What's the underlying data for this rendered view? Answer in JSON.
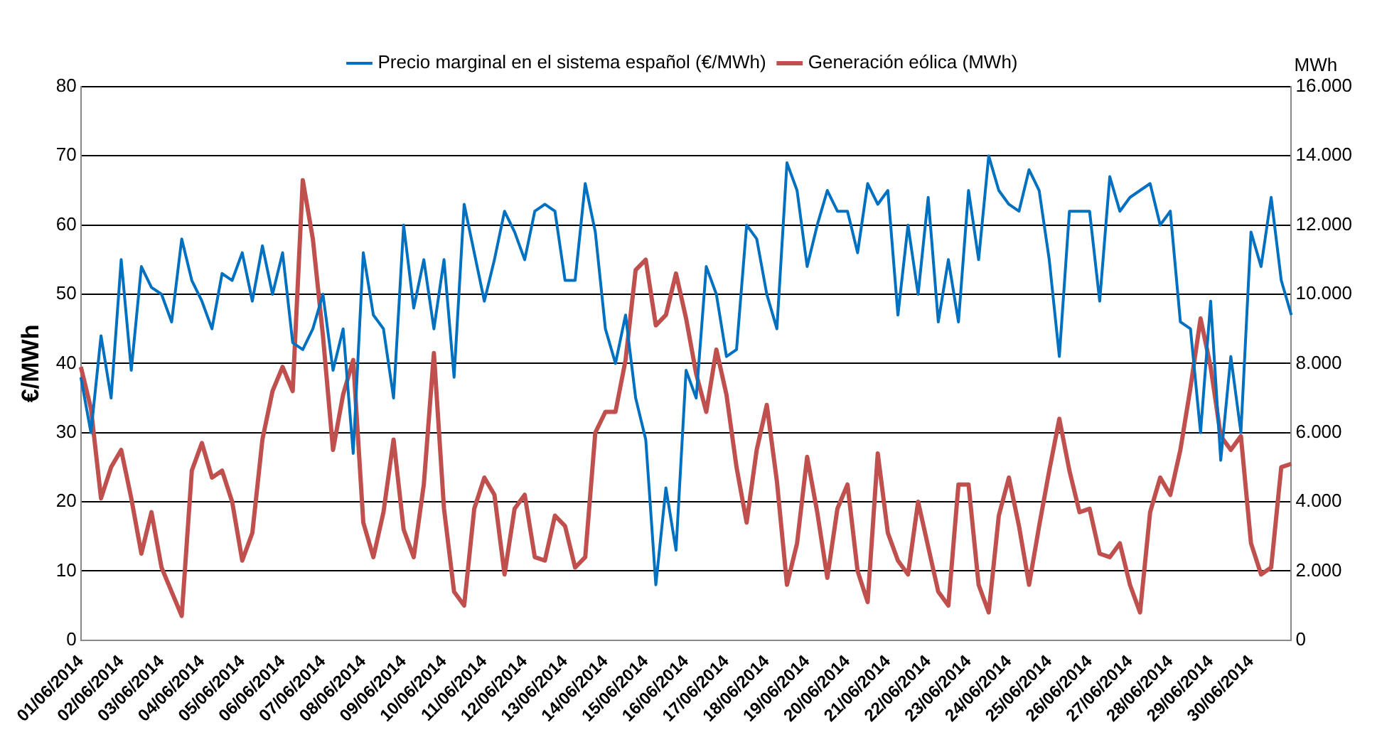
{
  "chart_data": {
    "type": "line",
    "ylabel": "€/MWh",
    "y2label": "MWh",
    "categories": [
      "01/06/2014",
      null,
      null,
      null,
      "02/06/2014",
      null,
      null,
      null,
      "03/06/2014",
      null,
      null,
      null,
      "04/06/2014",
      null,
      null,
      null,
      "05/06/2014",
      null,
      null,
      null,
      "06/06/2014",
      null,
      null,
      null,
      "07/06/2014",
      null,
      null,
      null,
      "08/06/2014",
      null,
      null,
      null,
      "09/06/2014",
      null,
      null,
      null,
      "10/06/2014",
      null,
      null,
      null,
      "11/06/2014",
      null,
      null,
      null,
      "12/06/2014",
      null,
      null,
      null,
      "13/06/2014",
      null,
      null,
      null,
      "14/06/2014",
      null,
      null,
      null,
      "15/06/2014",
      null,
      null,
      null,
      "16/06/2014",
      null,
      null,
      null,
      "17/06/2014",
      null,
      null,
      null,
      "18/06/2014",
      null,
      null,
      null,
      "19/06/2014",
      null,
      null,
      null,
      "20/06/2014",
      null,
      null,
      null,
      "21/06/2014",
      null,
      null,
      null,
      "22/06/2014",
      null,
      null,
      null,
      "23/06/2014",
      null,
      null,
      null,
      "24/06/2014",
      null,
      null,
      null,
      "25/06/2014",
      null,
      null,
      null,
      "26/06/2014",
      null,
      null,
      null,
      "27/06/2014",
      null,
      null,
      null,
      "28/06/2014",
      null,
      null,
      null,
      "29/06/2014",
      null,
      null,
      null,
      "30/06/2014",
      null,
      null,
      null,
      null
    ],
    "series": [
      {
        "name": "Precio marginal en el sistema español (€/MWh)",
        "color": "#0070c0",
        "values": [
          38,
          30,
          44,
          35,
          55,
          39,
          54,
          51,
          50,
          46,
          58,
          52,
          49,
          45,
          53,
          52,
          56,
          49,
          57,
          50,
          56,
          43,
          42,
          45,
          50,
          39,
          45,
          27,
          56,
          47,
          45,
          35,
          60,
          48,
          55,
          45,
          55,
          38,
          63,
          56,
          49,
          55,
          62,
          59,
          55,
          62,
          63,
          62,
          52,
          52,
          66,
          59,
          45,
          40,
          47,
          35,
          29,
          8,
          22,
          13,
          39,
          35,
          54,
          50,
          41,
          42,
          60,
          58,
          50,
          45,
          69,
          65,
          54,
          60,
          65,
          62,
          62,
          56,
          66,
          63,
          65,
          47,
          60,
          50,
          64,
          46,
          55,
          46,
          65,
          55,
          70,
          65,
          63,
          62,
          68,
          65,
          55,
          41,
          62,
          62,
          62,
          49,
          67,
          62,
          64,
          65,
          66,
          60,
          62,
          46,
          45,
          30,
          49,
          26,
          41,
          30,
          59,
          54,
          64,
          52,
          47
        ]
      },
      {
        "name": "Generación eólica (MWh)",
        "color": "#c0504d",
        "axis": "y2",
        "values": [
          7900,
          6700,
          4100,
          5000,
          5500,
          4100,
          2500,
          3700,
          2100,
          1400,
          700,
          4900,
          5700,
          4700,
          4900,
          4000,
          2300,
          3100,
          5800,
          7200,
          7900,
          7200,
          13300,
          11600,
          8800,
          5500,
          7100,
          8100,
          3400,
          2400,
          3700,
          5800,
          3200,
          2400,
          4500,
          8300,
          3800,
          1400,
          1000,
          3800,
          4700,
          4200,
          1900,
          3800,
          4200,
          2400,
          2300,
          3600,
          3300,
          2100,
          2400,
          6000,
          6600,
          6600,
          8100,
          10700,
          11000,
          9100,
          9400,
          10600,
          9300,
          7700,
          6600,
          8400,
          7100,
          5000,
          3400,
          5500,
          6800,
          4600,
          1600,
          2800,
          5300,
          3700,
          1800,
          3800,
          4500,
          2000,
          1100,
          5400,
          3100,
          2300,
          1900,
          4000,
          2700,
          1400,
          1000,
          4500,
          4500,
          1600,
          800,
          3600,
          4700,
          3300,
          1600,
          3300,
          4900,
          6400,
          4900,
          3700,
          3800,
          2500,
          2400,
          2800,
          1600,
          800,
          3700,
          4700,
          4200,
          5500,
          7300,
          9300,
          7900,
          5900,
          5500,
          5900,
          2800,
          1900,
          2100,
          5000,
          5100
        ]
      }
    ],
    "ylim": [
      0,
      80
    ],
    "yticks": [
      0,
      10,
      20,
      30,
      40,
      50,
      60,
      70,
      80
    ],
    "y2lim": [
      0,
      16000
    ],
    "y2ticks": [
      0,
      {
        "value": 2000,
        "label": "2.000"
      },
      {
        "value": 4000,
        "label": "4.000"
      },
      {
        "value": 6000,
        "label": "6.000"
      },
      {
        "value": 8000,
        "label": "8.000"
      },
      {
        "value": 10000,
        "label": "10.000"
      },
      {
        "value": 12000,
        "label": "12.000"
      },
      {
        "value": 14000,
        "label": "14.000"
      },
      {
        "value": 16000,
        "label": "16.000"
      }
    ],
    "grid": "y",
    "legend": "top"
  }
}
